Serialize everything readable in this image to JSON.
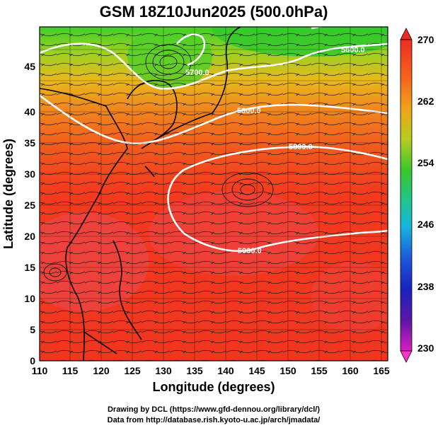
{
  "title": "GSM 18Z10Jun2025 (500.0hPa)",
  "x_axis": {
    "label": "Longitude (degrees)",
    "ticks": [
      "110",
      "115",
      "120",
      "125",
      "130",
      "135",
      "140",
      "145",
      "150",
      "155",
      "160",
      "165"
    ]
  },
  "y_axis": {
    "label": "Latitude  (degrees)",
    "ticks": [
      "0",
      "5",
      "10",
      "15",
      "20",
      "25",
      "30",
      "35",
      "40",
      "45"
    ]
  },
  "colorbar": {
    "ticks": [
      "270",
      "262",
      "254",
      "246",
      "238",
      "230"
    ],
    "colors": [
      "#ee2d22",
      "#f57c1c",
      "#e9a31a",
      "#7cc42c",
      "#27c43a",
      "#18c7c7",
      "#1c69d8",
      "#1a23c4",
      "#4b14a0",
      "#c81ab8",
      "#ff33cc"
    ]
  },
  "contour_labels": [
    "5600.0",
    "5700.0",
    "5800.0",
    "5800.0",
    "5900.0"
  ],
  "credits": {
    "line1": "Drawing by DCL (https://www.gfd-dennou.org/library/dcl/)",
    "line2": "Data from http://database.rish.kyoto-u.ac.jp/arch/jmadata/"
  },
  "colors": {
    "warm": "#f23a1f",
    "hot": "#e8474a",
    "mid": "#f08a1e",
    "cool": "#3ccf2a",
    "contour": "#ffffff",
    "coast": "#000000"
  }
}
